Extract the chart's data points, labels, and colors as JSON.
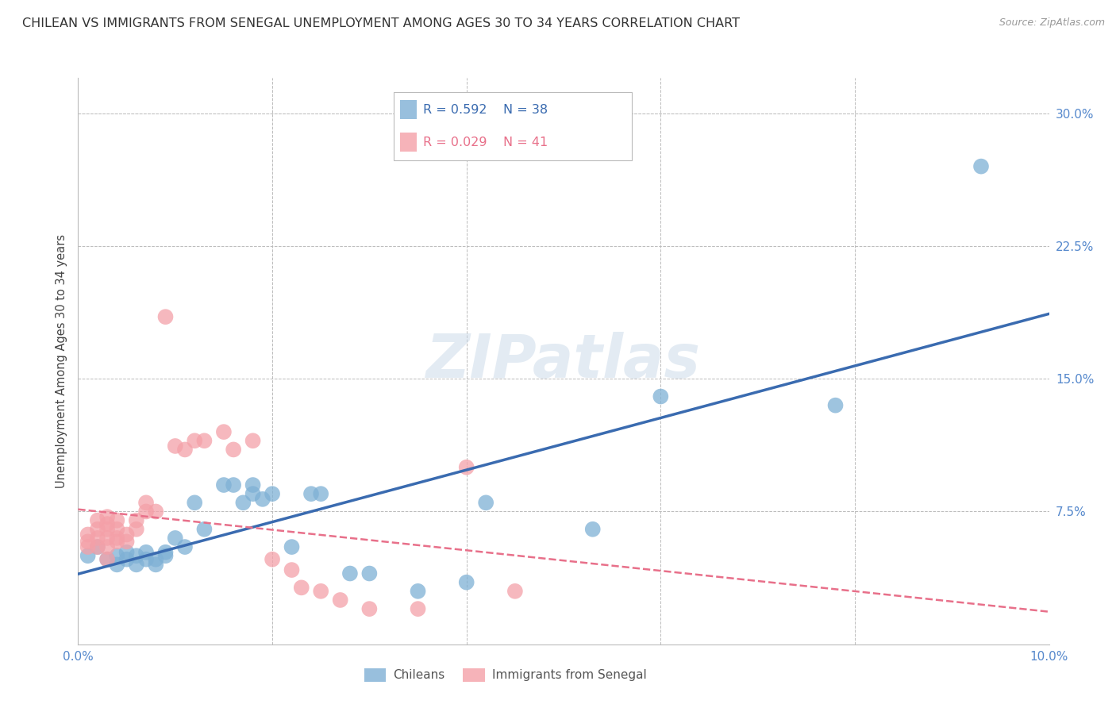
{
  "title": "CHILEAN VS IMMIGRANTS FROM SENEGAL UNEMPLOYMENT AMONG AGES 30 TO 34 YEARS CORRELATION CHART",
  "source": "Source: ZipAtlas.com",
  "ylabel": "Unemployment Among Ages 30 to 34 years",
  "xlim": [
    0.0,
    0.1
  ],
  "ylim": [
    0.0,
    0.32
  ],
  "yticks": [
    0.075,
    0.15,
    0.225,
    0.3
  ],
  "ytick_labels": [
    "7.5%",
    "15.0%",
    "22.5%",
    "30.0%"
  ],
  "xticks": [
    0.0,
    0.02,
    0.04,
    0.06,
    0.08,
    0.1
  ],
  "xtick_labels": [
    "0.0%",
    "",
    "",
    "",
    "",
    "10.0%"
  ],
  "blue_color": "#7EB0D5",
  "pink_color": "#F4A0A8",
  "blue_line_color": "#3A6BB0",
  "pink_line_color": "#E8708A",
  "watermark_text": "ZIPatlas",
  "blue_points_x": [
    0.001,
    0.002,
    0.003,
    0.004,
    0.004,
    0.005,
    0.005,
    0.006,
    0.006,
    0.007,
    0.007,
    0.008,
    0.008,
    0.009,
    0.009,
    0.01,
    0.011,
    0.012,
    0.013,
    0.015,
    0.016,
    0.017,
    0.018,
    0.018,
    0.019,
    0.02,
    0.022,
    0.024,
    0.025,
    0.028,
    0.03,
    0.035,
    0.04,
    0.042,
    0.053,
    0.06,
    0.078,
    0.093
  ],
  "blue_points_y": [
    0.05,
    0.055,
    0.048,
    0.05,
    0.045,
    0.052,
    0.048,
    0.05,
    0.045,
    0.048,
    0.052,
    0.048,
    0.045,
    0.052,
    0.05,
    0.06,
    0.055,
    0.08,
    0.065,
    0.09,
    0.09,
    0.08,
    0.085,
    0.09,
    0.082,
    0.085,
    0.055,
    0.085,
    0.085,
    0.04,
    0.04,
    0.03,
    0.035,
    0.08,
    0.065,
    0.14,
    0.135,
    0.27
  ],
  "pink_points_x": [
    0.001,
    0.001,
    0.001,
    0.002,
    0.002,
    0.002,
    0.002,
    0.003,
    0.003,
    0.003,
    0.003,
    0.003,
    0.003,
    0.004,
    0.004,
    0.004,
    0.004,
    0.005,
    0.005,
    0.006,
    0.006,
    0.007,
    0.007,
    0.008,
    0.009,
    0.01,
    0.011,
    0.012,
    0.013,
    0.015,
    0.016,
    0.018,
    0.02,
    0.022,
    0.023,
    0.025,
    0.027,
    0.03,
    0.035,
    0.04,
    0.045
  ],
  "pink_points_y": [
    0.055,
    0.058,
    0.062,
    0.055,
    0.06,
    0.065,
    0.07,
    0.048,
    0.055,
    0.06,
    0.065,
    0.068,
    0.072,
    0.058,
    0.06,
    0.065,
    0.07,
    0.058,
    0.062,
    0.065,
    0.07,
    0.075,
    0.08,
    0.075,
    0.185,
    0.112,
    0.11,
    0.115,
    0.115,
    0.12,
    0.11,
    0.115,
    0.048,
    0.042,
    0.032,
    0.03,
    0.025,
    0.02,
    0.02,
    0.1,
    0.03
  ],
  "background_color": "#FFFFFF",
  "grid_color": "#BBBBBB",
  "axis_label_color": "#5588CC",
  "title_fontsize": 11.5,
  "tick_fontsize": 11
}
